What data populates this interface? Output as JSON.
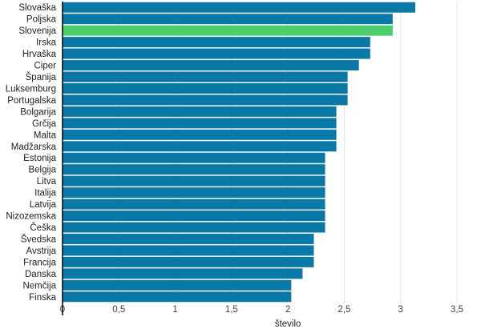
{
  "chart_data": {
    "type": "bar",
    "orientation": "horizontal",
    "categories": [
      "Slovaška",
      "Poljska",
      "Slovenija",
      "Irska",
      "Hrvaška",
      "Ciper",
      "Španija",
      "Luksemburg",
      "Portugalska",
      "Bolgarija",
      "Grčija",
      "Malta",
      "Madžarska",
      "Estonija",
      "Belgija",
      "Litva",
      "Italija",
      "Latvija",
      "Nizozemska",
      "Češka",
      "Švedska",
      "Avstrija",
      "Francija",
      "Danska",
      "Nemčija",
      "Finska"
    ],
    "values": [
      3.13,
      2.93,
      2.93,
      2.73,
      2.73,
      2.63,
      2.53,
      2.53,
      2.53,
      2.43,
      2.43,
      2.43,
      2.43,
      2.33,
      2.33,
      2.33,
      2.33,
      2.33,
      2.33,
      2.33,
      2.23,
      2.23,
      2.23,
      2.13,
      2.03,
      2.03
    ],
    "highlight": "Slovenija",
    "colors": {
      "bar": "#0b79a8",
      "highlight": "#4cce6d",
      "grid": "#e4e4e4",
      "axis": "#000000"
    },
    "xlabel": "število",
    "ylabel": "",
    "title": "",
    "xlim": [
      0,
      3.5
    ],
    "xticks": [
      0,
      0.5,
      1,
      1.5,
      2,
      2.5,
      3,
      3.5
    ],
    "xtick_labels": [
      "0",
      "0,5",
      "1",
      "1,5",
      "2",
      "2,5",
      "3",
      "3,5"
    ],
    "grid": true
  }
}
